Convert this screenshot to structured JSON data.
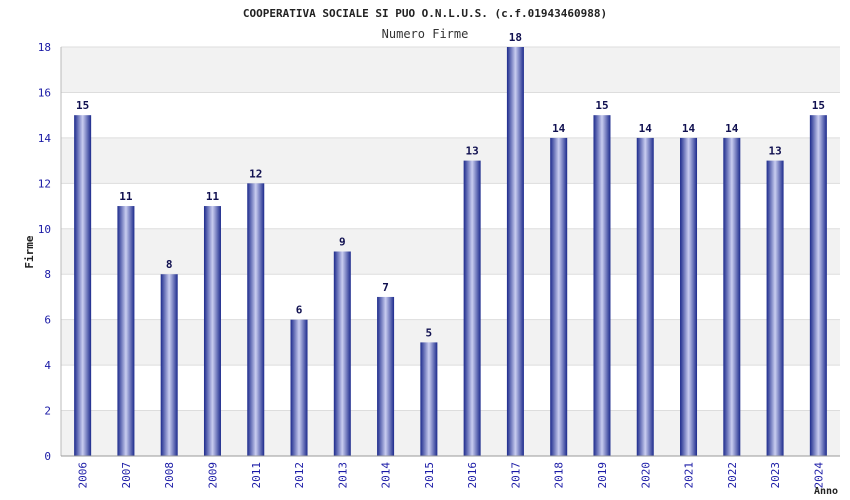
{
  "chart_data": {
    "type": "bar",
    "title": "COOPERATIVA SOCIALE SI PUO O.N.L.U.S. (c.f.01943460988)",
    "subtitle": "Numero Firme",
    "xlabel": "Anno",
    "ylabel": "Firme",
    "ylim": [
      0,
      18
    ],
    "yticks": [
      0,
      2,
      4,
      6,
      8,
      10,
      12,
      14,
      16,
      18
    ],
    "grid": true,
    "categories": [
      "2006",
      "2007",
      "2008",
      "2009",
      "2011",
      "2012",
      "2013",
      "2014",
      "2015",
      "2016",
      "2017",
      "2018",
      "2019",
      "2020",
      "2021",
      "2022",
      "2023",
      "2024"
    ],
    "values": [
      15,
      11,
      8,
      11,
      12,
      6,
      9,
      7,
      5,
      13,
      18,
      14,
      15,
      14,
      14,
      14,
      13,
      15
    ],
    "colors": {
      "bar_dark": "#1c2a8c",
      "bar_light": "#c9cdf0",
      "band": "#f2f2f2",
      "tick": "#1a1aa6"
    }
  }
}
